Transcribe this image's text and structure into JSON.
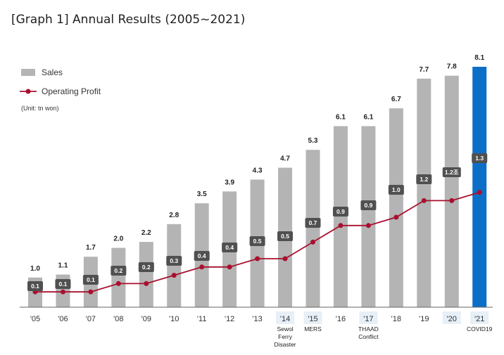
{
  "chart_data": {
    "type": "bar",
    "title": "[Graph 1] Annual Results (2005~2021)",
    "unit": "(Unit: tn won)",
    "legend_position": "top-left",
    "grid": false,
    "categories": [
      "'05",
      "'06",
      "'07",
      "'08",
      "'09",
      "'10",
      "'11",
      "'12",
      "'13",
      "'14",
      "'15",
      "'16",
      "'17",
      "'18",
      "'19",
      "'20",
      "'21"
    ],
    "ylim": [
      0,
      8.1
    ],
    "series": [
      {
        "name": "Sales",
        "type": "bar",
        "color": "#b4b4b4",
        "highlight_color": "#0c6fc7",
        "values": [
          1.0,
          1.1,
          1.7,
          2.0,
          2.2,
          2.8,
          3.5,
          3.9,
          4.3,
          4.7,
          5.3,
          6.1,
          6.1,
          6.7,
          7.7,
          7.8,
          8.1
        ],
        "labels": [
          "1.0",
          "1.1",
          "1.7",
          "2.0",
          "2.2",
          "2.8",
          "3.5",
          "3.9",
          "4.3",
          "4.7",
          "5.3",
          "6.1",
          "6.1",
          "6.7",
          "7.7",
          "7.8",
          "8.1"
        ]
      },
      {
        "name": "Operating Profit",
        "type": "line",
        "color": "#a8102f",
        "label_box_color": "#505050",
        "values": [
          0.1,
          0.1,
          0.1,
          0.2,
          0.2,
          0.3,
          0.4,
          0.4,
          0.5,
          0.5,
          0.7,
          0.9,
          0.9,
          1.0,
          1.2,
          1.2,
          1.3
        ],
        "labels": [
          "0.1",
          "0.1",
          "0.1",
          "0.2",
          "0.2",
          "0.3",
          "0.4",
          "0.4",
          "0.5",
          "0.5",
          "0.7",
          "0.9",
          "0.9",
          "1.0",
          "1.2",
          "1.2조",
          "1.3"
        ]
      }
    ],
    "annotations": [
      {
        "category": "'14",
        "lines": [
          "Sewol",
          "Ferry",
          "Disaster"
        ]
      },
      {
        "category": "'15",
        "lines": [
          "MERS"
        ]
      },
      {
        "category": "'17",
        "lines": [
          "THAAD",
          "Conflict"
        ]
      },
      {
        "category": "'21",
        "lines": [
          "COVID19"
        ]
      }
    ],
    "highlighted_categories": [
      "'14",
      "'15",
      "'17",
      "'20",
      "'21"
    ]
  }
}
